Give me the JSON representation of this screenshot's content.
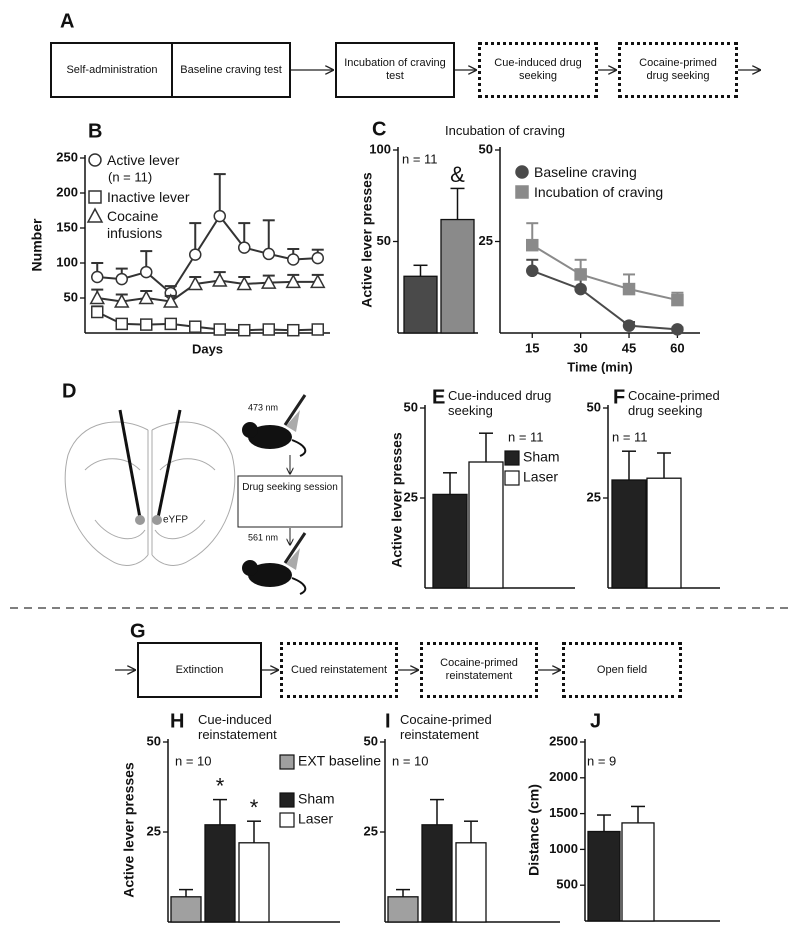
{
  "flow_a": {
    "label": "A",
    "steps": [
      {
        "text": "Self-administration",
        "border": "solid"
      },
      {
        "text": "Baseline craving test",
        "border": "solid"
      },
      {
        "text": "Incubation of craving test",
        "border": "solid"
      },
      {
        "text": "Cue-induced drug seeking",
        "border": "dotted"
      },
      {
        "text": "Cocaine-primed drug seeking",
        "border": "dotted"
      }
    ]
  },
  "diagram_d": {
    "label": "D",
    "fiber_label": "eYFP",
    "laser_top": "473 nm",
    "session": "Drug seeking session",
    "laser_bottom": "561 nm"
  },
  "flow_g": {
    "label": "G",
    "steps": [
      {
        "text": "Extinction",
        "border": "solid"
      },
      {
        "text": "Cued reinstatement",
        "border": "dotted"
      },
      {
        "text": "Cocaine-primed reinstatement",
        "border": "dotted"
      },
      {
        "text": "Open field",
        "border": "dotted"
      }
    ]
  },
  "chart_data": [
    {
      "panel": "B",
      "type": "line",
      "ylabel": "Number",
      "xlabel": "Days",
      "note": "(n = 11)",
      "categories": [
        null,
        null,
        null,
        null,
        null,
        null,
        null,
        null,
        null,
        null
      ],
      "ylim": [
        0,
        250
      ],
      "yticks": [
        50,
        100,
        150,
        200,
        250
      ],
      "series": [
        {
          "name": "Active lever",
          "marker": "circle",
          "color": "#333333",
          "values": [
            80,
            77,
            87,
            57,
            112,
            167,
            122,
            113,
            105,
            107
          ],
          "errors": [
            20,
            15,
            30,
            10,
            45,
            60,
            35,
            48,
            15,
            12
          ]
        },
        {
          "name": "Inactive lever",
          "marker": "square",
          "color": "#333333",
          "values": [
            30,
            13,
            12,
            13,
            9,
            5,
            4,
            5,
            4,
            5
          ],
          "errors": [
            8,
            4,
            4,
            5,
            3,
            2,
            2,
            2,
            2,
            2
          ]
        },
        {
          "name": "Cocaine infusions",
          "marker": "triangle",
          "color": "#333333",
          "values": [
            50,
            45,
            50,
            45,
            70,
            75,
            70,
            72,
            73,
            73
          ],
          "errors": [
            12,
            10,
            10,
            8,
            10,
            12,
            10,
            10,
            10,
            10
          ]
        }
      ]
    },
    {
      "panel": "C",
      "type": "bar",
      "title": "Incubation of craving",
      "ylabel": "Active lever presses",
      "note": "n = 11",
      "categories": [
        null,
        null
      ],
      "values": [
        31,
        62
      ],
      "errors": [
        6,
        17
      ],
      "colors": [
        "#4a4a4a",
        "#8a8a8a"
      ],
      "bar_labels": [
        null,
        "&"
      ],
      "legend": false,
      "ylim": [
        0,
        100
      ],
      "yticks": [
        50,
        100
      ]
    },
    {
      "type": "line",
      "xlabel": "Time (min)",
      "x": [
        15,
        30,
        45,
        60
      ],
      "xlim": [
        5,
        67
      ],
      "xticks": [
        15,
        30,
        45,
        60
      ],
      "ylim": [
        0,
        50
      ],
      "yticks": [
        25,
        50
      ],
      "series": [
        {
          "name": "Baseline craving",
          "marker": "circle",
          "color": "#4a4a4a",
          "values": [
            17,
            12,
            2,
            1
          ],
          "errors": [
            3,
            3,
            1,
            0.5
          ]
        },
        {
          "name": "Incubation of craving",
          "marker": "square",
          "color": "#8a8a8a",
          "values": [
            24,
            16,
            12,
            9
          ],
          "errors": [
            6,
            4,
            4,
            2
          ]
        }
      ]
    },
    {
      "panel": "E",
      "type": "bar",
      "title": "Cue-induced drug seeking",
      "ylabel": "Active lever presses",
      "note": "n = 11",
      "categories": [
        "Sham",
        "Laser"
      ],
      "values": [
        26,
        35
      ],
      "errors": [
        6,
        8
      ],
      "colors": [
        "#222222",
        "#ffffff"
      ],
      "legend": true,
      "ylim": [
        0,
        50
      ],
      "yticks": [
        25,
        50
      ]
    },
    {
      "panel": "F",
      "type": "bar",
      "title": "Cocaine-primed drug seeking",
      "note": "n = 11",
      "categories": [
        null,
        null
      ],
      "values": [
        30,
        30.5
      ],
      "errors": [
        8,
        7
      ],
      "colors": [
        "#222222",
        "#ffffff"
      ],
      "legend": false,
      "ylim": [
        0,
        50
      ],
      "yticks": [
        25,
        50
      ]
    },
    {
      "panel": "H",
      "type": "bar",
      "title": "Cue-induced reinstatement",
      "ylabel": "Active lever presses",
      "note": "n = 10",
      "categories": [
        "EXT baseline",
        "Sham",
        "Laser"
      ],
      "values": [
        7,
        27,
        22
      ],
      "errors": [
        2,
        7,
        6
      ],
      "colors": [
        "#a0a0a0",
        "#222222",
        "#ffffff"
      ],
      "bar_labels": [
        null,
        "*",
        "*"
      ],
      "legend": true,
      "ylim": [
        0,
        50
      ],
      "yticks": [
        25,
        50
      ]
    },
    {
      "panel": "I",
      "type": "bar",
      "title": "Cocaine-primed reinstatement",
      "note": "n = 10",
      "categories": [
        null,
        null,
        null
      ],
      "values": [
        7,
        27,
        22
      ],
      "errors": [
        2,
        7,
        6
      ],
      "colors": [
        "#a0a0a0",
        "#222222",
        "#ffffff"
      ],
      "legend": false,
      "ylim": [
        0,
        50
      ],
      "yticks": [
        25,
        50
      ]
    },
    {
      "panel": "J",
      "type": "bar",
      "ylabel": "Distance (cm)",
      "note": "n = 9",
      "categories": [
        null,
        null
      ],
      "values": [
        1250,
        1370
      ],
      "errors": [
        230,
        230
      ],
      "colors": [
        "#222222",
        "#ffffff"
      ],
      "legend": false,
      "ylim": [
        0,
        2500
      ],
      "yticks": [
        500,
        1000,
        1500,
        2000,
        2500
      ]
    }
  ]
}
